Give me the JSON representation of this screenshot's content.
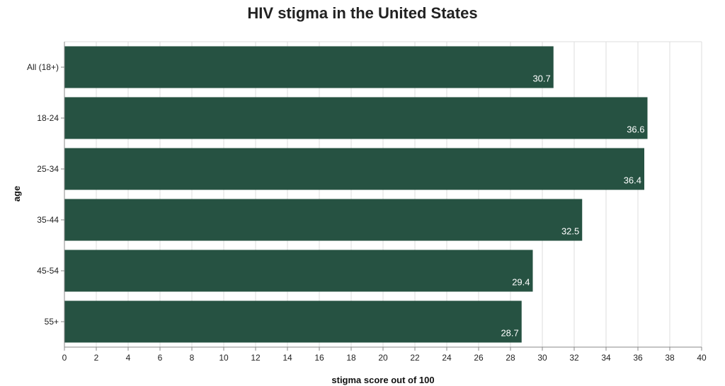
{
  "chart_data": {
    "type": "bar",
    "orientation": "horizontal",
    "title": "HIV stigma in the United States",
    "xlabel": "stigma score out of 100",
    "ylabel": "age",
    "xlim": [
      0,
      40
    ],
    "xticks": [
      0,
      2,
      4,
      6,
      8,
      10,
      12,
      14,
      16,
      18,
      20,
      22,
      24,
      26,
      28,
      30,
      32,
      34,
      36,
      38,
      40
    ],
    "categories": [
      "All (18+)",
      "18-24",
      "25-34",
      "35-44",
      "45-54",
      "55+"
    ],
    "values": [
      30.7,
      36.6,
      36.4,
      32.5,
      29.4,
      28.7
    ],
    "value_labels": [
      "30.7",
      "36.6",
      "36.4",
      "32.5",
      "29.4",
      "28.7"
    ],
    "grid": true,
    "colors": {
      "bar": "#265242",
      "grid": "#dddddd",
      "axis": "#888888"
    }
  }
}
